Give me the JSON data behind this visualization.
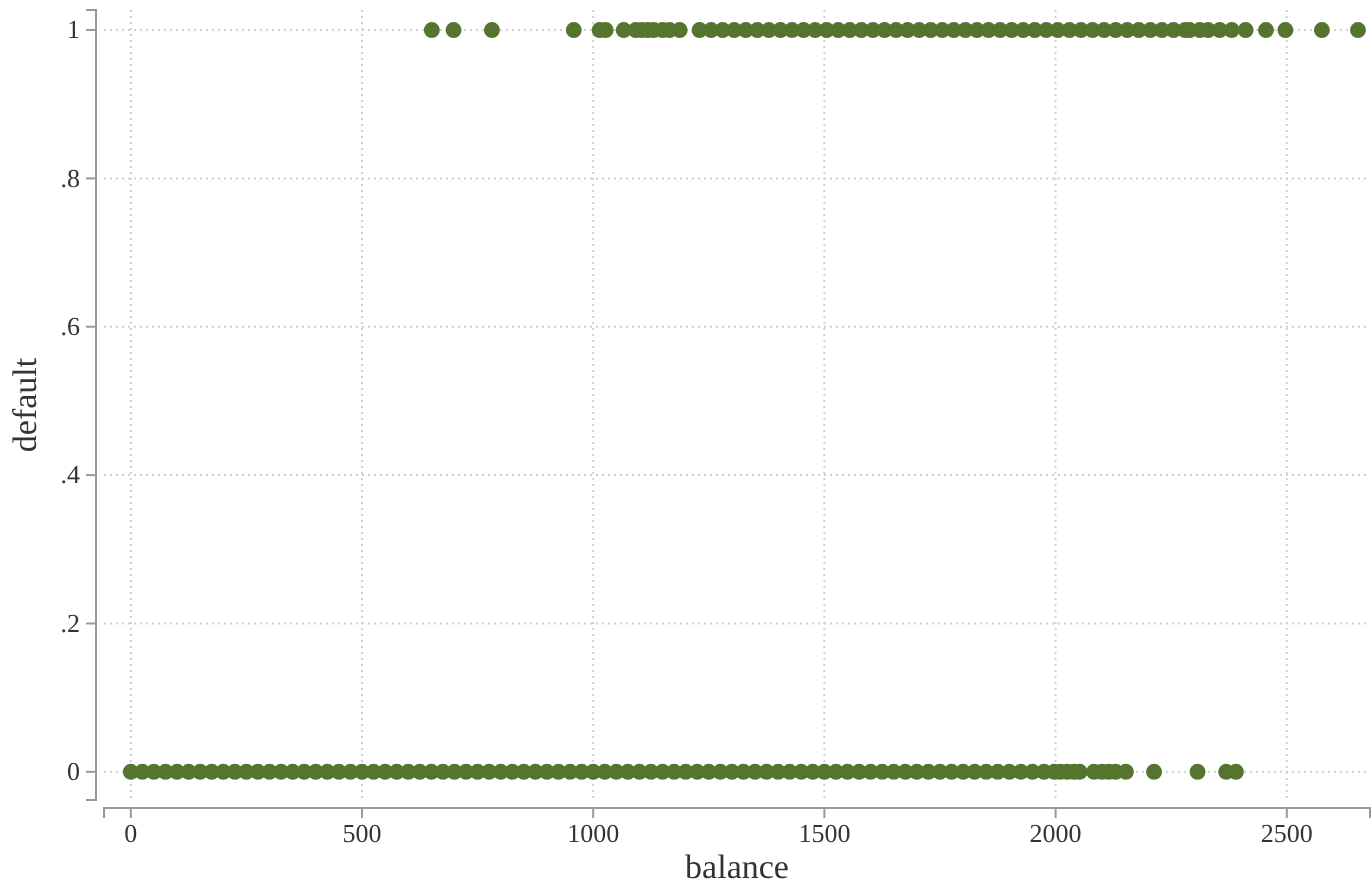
{
  "chart_data": {
    "type": "scatter",
    "xlabel": "balance",
    "ylabel": "default",
    "xlim": [
      -58,
      2680
    ],
    "ylim": [
      -0.038,
      1.027
    ],
    "xticks": [
      0,
      500,
      1000,
      1500,
      2000,
      2500
    ],
    "yticks": [
      0,
      {
        "value": 0.2,
        "label": ".2"
      },
      {
        "value": 0.4,
        "label": ".4"
      },
      {
        "value": 0.6,
        "label": ".6"
      },
      {
        "value": 0.8,
        "label": ".8"
      },
      1
    ],
    "grid": true,
    "marker": "circle",
    "series": [
      {
        "color": "#55752f",
        "x": [
          0,
          25,
          50,
          75,
          100,
          125,
          150,
          175,
          200,
          225,
          250,
          275,
          300,
          325,
          350,
          375,
          400,
          425,
          450,
          475,
          500,
          525,
          550,
          575,
          600,
          625,
          650,
          675,
          700,
          725,
          750,
          775,
          800,
          825,
          850,
          875,
          900,
          925,
          950,
          975,
          1000,
          1025,
          1050,
          1075,
          1100,
          1125,
          1150,
          1175,
          1200,
          1225,
          1250,
          1275,
          1300,
          1325,
          1350,
          1375,
          1400,
          1425,
          1450,
          1475,
          1500,
          1525,
          1550,
          1575,
          1600,
          1625,
          1650,
          1675,
          1700,
          1725,
          1750,
          1775,
          1800,
          1825,
          1850,
          1875,
          1900,
          1925,
          1950,
          1975,
          1997,
          2010,
          2025,
          2040,
          2052,
          2083,
          2100,
          2115,
          2130,
          2152,
          2213,
          2307,
          2369,
          2390
        ],
        "values": [
          0,
          0,
          0,
          0,
          0,
          0,
          0,
          0,
          0,
          0,
          0,
          0,
          0,
          0,
          0,
          0,
          0,
          0,
          0,
          0,
          0,
          0,
          0,
          0,
          0,
          0,
          0,
          0,
          0,
          0,
          0,
          0,
          0,
          0,
          0,
          0,
          0,
          0,
          0,
          0,
          0,
          0,
          0,
          0,
          0,
          0,
          0,
          0,
          0,
          0,
          0,
          0,
          0,
          0,
          0,
          0,
          0,
          0,
          0,
          0,
          0,
          0,
          0,
          0,
          0,
          0,
          0,
          0,
          0,
          0,
          0,
          0,
          0,
          0,
          0,
          0,
          0,
          0,
          0,
          0,
          0,
          0,
          0,
          0,
          0,
          0,
          0,
          0,
          0,
          0,
          0,
          0,
          0,
          0
        ]
      },
      {
        "color": "#55752f",
        "x": [
          651,
          698,
          781,
          958,
          1014,
          1027,
          1066,
          1092,
          1105,
          1118,
          1131,
          1150,
          1165,
          1187,
          1230,
          1255,
          1280,
          1305,
          1330,
          1355,
          1380,
          1405,
          1430,
          1455,
          1480,
          1505,
          1530,
          1555,
          1580,
          1605,
          1630,
          1655,
          1680,
          1705,
          1730,
          1755,
          1780,
          1805,
          1830,
          1855,
          1880,
          1905,
          1930,
          1955,
          1980,
          2005,
          2030,
          2055,
          2080,
          2105,
          2130,
          2155,
          2180,
          2205,
          2230,
          2255,
          2280,
          2290,
          2312,
          2330,
          2355,
          2381,
          2411,
          2455,
          2497,
          2576,
          2654
        ],
        "values": [
          1,
          1,
          1,
          1,
          1,
          1,
          1,
          1,
          1,
          1,
          1,
          1,
          1,
          1,
          1,
          1,
          1,
          1,
          1,
          1,
          1,
          1,
          1,
          1,
          1,
          1,
          1,
          1,
          1,
          1,
          1,
          1,
          1,
          1,
          1,
          1,
          1,
          1,
          1,
          1,
          1,
          1,
          1,
          1,
          1,
          1,
          1,
          1,
          1,
          1,
          1,
          1,
          1,
          1,
          1,
          1,
          1,
          1,
          1,
          1,
          1,
          1,
          1,
          1,
          1,
          1,
          1
        ]
      }
    ]
  }
}
